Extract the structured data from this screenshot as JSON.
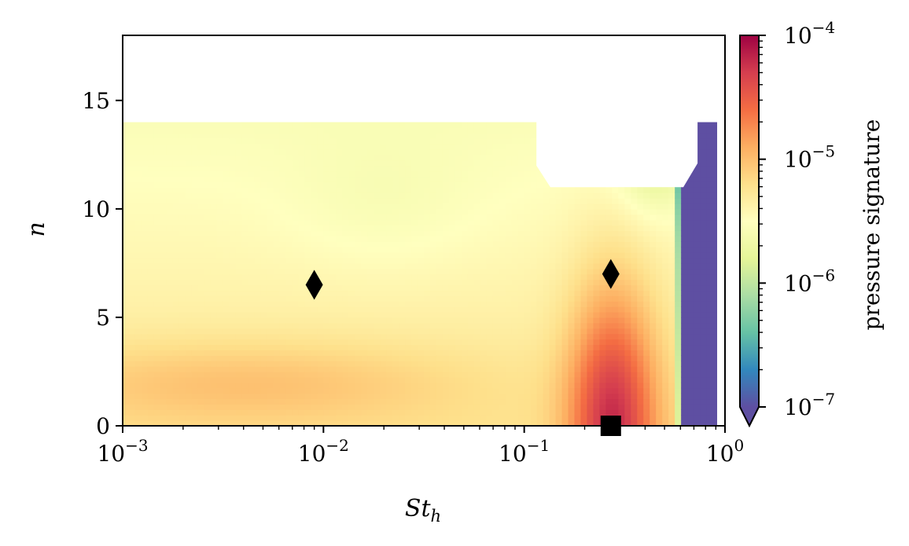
{
  "chart_data": {
    "type": "heatmap",
    "title": "",
    "xlabel": "St",
    "xlabel_sub": "h",
    "ylabel": "n",
    "xscale": "log",
    "xlim": [
      0.001,
      1
    ],
    "ylim": [
      0,
      18
    ],
    "x_ticks": [
      {
        "value": 0.001,
        "base": "10",
        "exp": "−3"
      },
      {
        "value": 0.01,
        "base": "10",
        "exp": "−2"
      },
      {
        "value": 0.1,
        "base": "10",
        "exp": "−1"
      },
      {
        "value": 1,
        "base": "10",
        "exp": "0"
      }
    ],
    "y_ticks": [
      {
        "value": 0,
        "label": "0"
      },
      {
        "value": 5,
        "label": "5"
      },
      {
        "value": 10,
        "label": "10"
      },
      {
        "value": 15,
        "label": "15"
      }
    ],
    "colorbar": {
      "label": "pressure signature",
      "scale": "log",
      "colormap": "Spectral_r",
      "range": [
        1e-07,
        0.0001
      ],
      "extend": "min",
      "ticks": [
        {
          "value": 0.0001,
          "base": "10",
          "exp": "−4"
        },
        {
          "value": 1e-05,
          "base": "10",
          "exp": "−5"
        },
        {
          "value": 1e-06,
          "base": "10",
          "exp": "−6"
        },
        {
          "value": 1e-07,
          "base": "10",
          "exp": "−7"
        }
      ]
    },
    "markers": [
      {
        "shape": "diamond",
        "x": 0.009,
        "y": 6.5
      },
      {
        "shape": "diamond",
        "x": 0.27,
        "y": 7.0
      },
      {
        "shape": "square",
        "x": 0.27,
        "y": 0.0
      }
    ],
    "colors": {
      "diverging": [
        "#5e4fa2",
        "#3288bd",
        "#66c2a5",
        "#abdda4",
        "#e6f598",
        "#ffffbf",
        "#fee08b",
        "#fdae61",
        "#f46d43",
        "#d53e4f",
        "#9e0142"
      ]
    }
  }
}
